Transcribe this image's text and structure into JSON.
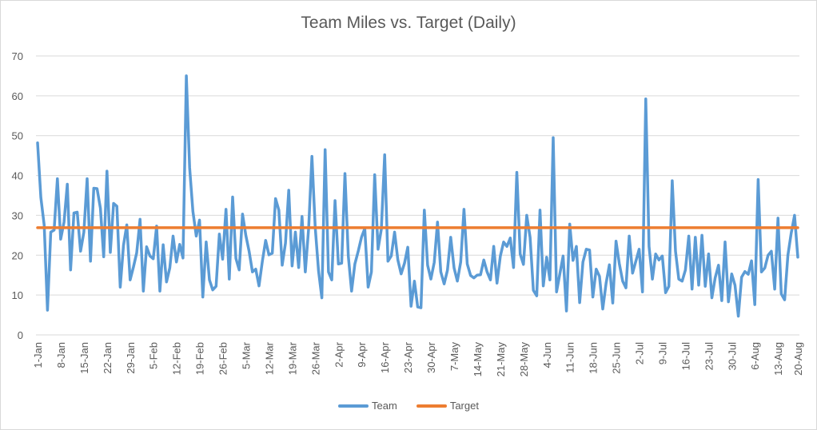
{
  "chart_data": {
    "type": "line",
    "title": "Team Miles vs. Target (Daily)",
    "xlabel": "",
    "ylabel": "",
    "ylim": [
      0,
      70
    ],
    "yticks": [
      0,
      10,
      20,
      30,
      40,
      50,
      60,
      70
    ],
    "grid": true,
    "legend_position": "bottom",
    "x_start": "1-Jan",
    "x_end": "20-Aug",
    "x_ticks": [
      "1-Jan",
      "8-Jan",
      "15-Jan",
      "22-Jan",
      "29-Jan",
      "5-Feb",
      "12-Feb",
      "19-Feb",
      "26-Feb",
      "5-Mar",
      "12-Mar",
      "19-Mar",
      "26-Mar",
      "2-Apr",
      "9-Apr",
      "16-Apr",
      "23-Apr",
      "30-Apr",
      "7-May",
      "14-May",
      "21-May",
      "28-May",
      "4-Jun",
      "11-Jun",
      "18-Jun",
      "25-Jun",
      "2-Jul",
      "9-Jul",
      "16-Jul",
      "23-Jul",
      "30-Jul",
      "6-Aug",
      "13-Aug",
      "20-Aug"
    ],
    "series": [
      {
        "name": "Team",
        "color": "#5b9bd5",
        "values": [
          48.2,
          34.5,
          27.5,
          6.2,
          25.8,
          26.3,
          39.2,
          24.0,
          28.3,
          37.8,
          16.3,
          30.6,
          30.8,
          21.0,
          25.8,
          39.2,
          18.5,
          36.8,
          36.7,
          31.8,
          19.6,
          41.1,
          20.7,
          33.0,
          32.3,
          12.0,
          22.5,
          27.6,
          13.8,
          17.0,
          20.6,
          29.0,
          11.0,
          22.1,
          19.8,
          19.1,
          27.3,
          11.0,
          22.6,
          13.3,
          16.8,
          24.8,
          18.3,
          22.7,
          19.3,
          65.0,
          42.0,
          31.0,
          24.8,
          28.8,
          9.5,
          23.3,
          13.8,
          11.3,
          12.2,
          25.3,
          19.0,
          31.5,
          14.0,
          34.6,
          19.2,
          16.3,
          30.3,
          25.0,
          21.0,
          15.8,
          16.5,
          12.3,
          18.5,
          23.7,
          20.1,
          20.5,
          34.2,
          31.3,
          17.5,
          23.0,
          36.3,
          17.3,
          25.8,
          16.9,
          29.7,
          15.8,
          26.8,
          44.8,
          27.0,
          16.0,
          9.3,
          46.5,
          15.8,
          13.8,
          33.7,
          17.8,
          18.0,
          40.5,
          19.8,
          11.0,
          17.8,
          21.0,
          24.5,
          26.7,
          12.0,
          15.8,
          40.2,
          21.5,
          26.5,
          45.2,
          18.5,
          19.8,
          25.8,
          18.8,
          15.3,
          18.0,
          22.0,
          7.2,
          13.5,
          7.0,
          6.8,
          31.3,
          17.5,
          14.0,
          18.2,
          28.3,
          15.8,
          12.8,
          16.2,
          24.5,
          16.8,
          13.5,
          18.3,
          31.5,
          17.8,
          14.9,
          14.3,
          15.0,
          15.1,
          18.8,
          15.8,
          13.8,
          22.2,
          13.0,
          19.8,
          23.3,
          22.2,
          24.3,
          16.9,
          40.8,
          20.3,
          17.7,
          30.0,
          24.5,
          11.2,
          9.8,
          31.3,
          12.3,
          19.5,
          13.8,
          49.5,
          10.8,
          15.3,
          19.8,
          6.0,
          27.8,
          18.7,
          22.2,
          8.1,
          18.3,
          21.5,
          21.3,
          9.5,
          16.5,
          14.7,
          6.5,
          13.0,
          17.6,
          8.0,
          23.5,
          17.9,
          13.5,
          11.8,
          24.8,
          15.5,
          18.5,
          21.5,
          10.8,
          59.2,
          22.2,
          14.0,
          20.3,
          18.8,
          19.8,
          10.6,
          12.2,
          38.7,
          21.0,
          14.0,
          13.5,
          16.3,
          24.8,
          11.5,
          24.5,
          12.5,
          25.0,
          12.2,
          20.3,
          9.3,
          14.3,
          17.5,
          8.6,
          23.3,
          8.3,
          15.3,
          12.5,
          4.7,
          14.5,
          15.9,
          15.2,
          18.6,
          7.6,
          39.0,
          15.8,
          16.8,
          20.0,
          21.0,
          11.5,
          29.3,
          10.3,
          8.8,
          20.0,
          25.5,
          30.0,
          19.5
        ]
      },
      {
        "name": "Target",
        "color": "#ed7d31",
        "value_constant": 26.9
      }
    ]
  }
}
